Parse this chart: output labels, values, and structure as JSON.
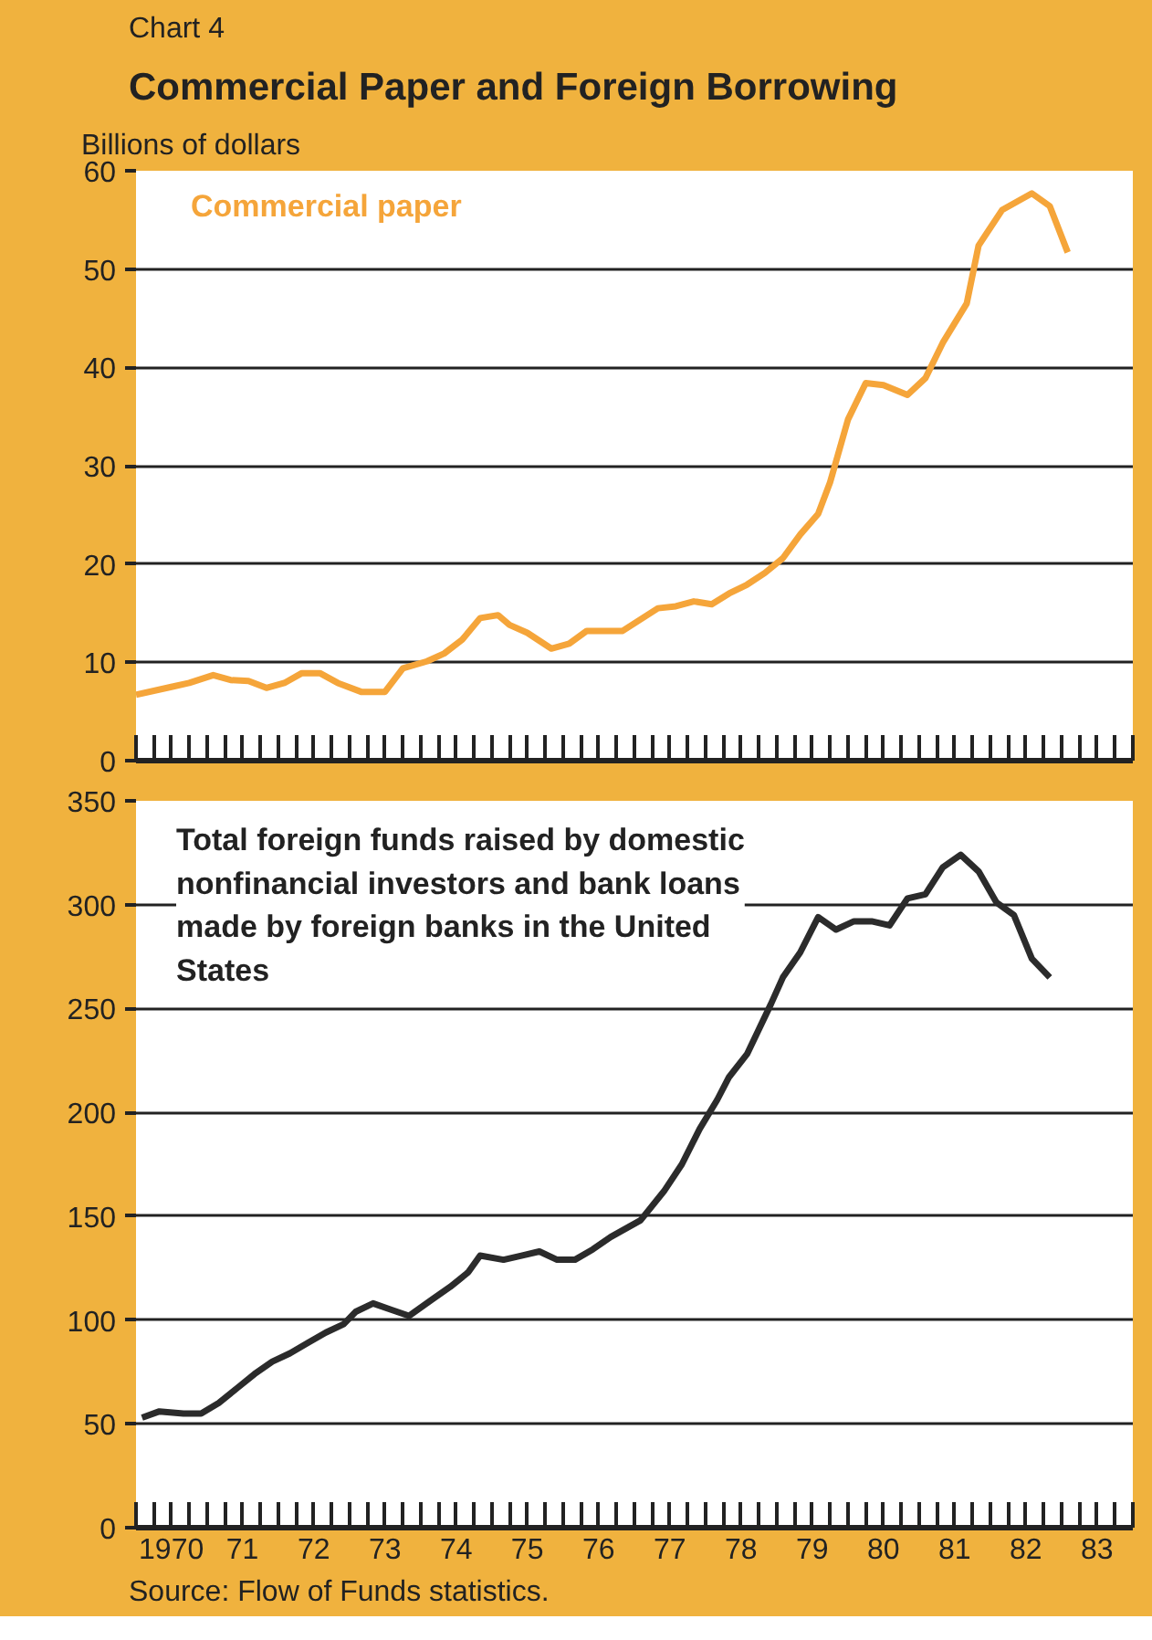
{
  "chart_data": [
    {
      "type": "line",
      "title": "Commercial Paper and Foreign Borrowing",
      "annotations": [
        "Chart 4"
      ],
      "ylabel": "Billions of dollars",
      "xlim": [
        "1970-01",
        "1984-01"
      ],
      "ylim": [
        0,
        60
      ],
      "yticks": [
        0,
        10,
        20,
        30,
        40,
        50,
        60
      ],
      "grid": "y",
      "tick_labels": "y",
      "xticks": [
        {
          "value": "1970-01",
          "label": null
        },
        {
          "value": "1970-04",
          "label": null
        },
        {
          "value": "1970-07",
          "label": "1970"
        },
        {
          "value": "1970-10",
          "label": null
        },
        {
          "value": "1971-01",
          "label": null
        },
        {
          "value": "1971-04",
          "label": null
        },
        {
          "value": "1971-07",
          "label": "71"
        },
        {
          "value": "1971-10",
          "label": null
        },
        {
          "value": "1972-01",
          "label": null
        },
        {
          "value": "1972-04",
          "label": null
        },
        {
          "value": "1972-07",
          "label": "72"
        },
        {
          "value": "1972-10",
          "label": null
        },
        {
          "value": "1973-01",
          "label": null
        },
        {
          "value": "1973-04",
          "label": null
        },
        {
          "value": "1973-07",
          "label": "73"
        },
        {
          "value": "1973-10",
          "label": null
        },
        {
          "value": "1974-01",
          "label": null
        },
        {
          "value": "1974-04",
          "label": null
        },
        {
          "value": "1974-07",
          "label": "74"
        },
        {
          "value": "1974-10",
          "label": null
        },
        {
          "value": "1975-01",
          "label": null
        },
        {
          "value": "1975-04",
          "label": null
        },
        {
          "value": "1975-07",
          "label": "75"
        },
        {
          "value": "1975-10",
          "label": null
        },
        {
          "value": "1976-01",
          "label": null
        },
        {
          "value": "1976-04",
          "label": null
        },
        {
          "value": "1976-07",
          "label": "76"
        },
        {
          "value": "1976-10",
          "label": null
        },
        {
          "value": "1977-01",
          "label": null
        },
        {
          "value": "1977-04",
          "label": null
        },
        {
          "value": "1977-07",
          "label": "77"
        },
        {
          "value": "1977-10",
          "label": null
        },
        {
          "value": "1978-01",
          "label": null
        },
        {
          "value": "1978-04",
          "label": null
        },
        {
          "value": "1978-07",
          "label": "78"
        },
        {
          "value": "1978-10",
          "label": null
        },
        {
          "value": "1979-01",
          "label": null
        },
        {
          "value": "1979-04",
          "label": null
        },
        {
          "value": "1979-07",
          "label": "79"
        },
        {
          "value": "1979-10",
          "label": null
        },
        {
          "value": "1980-01",
          "label": null
        },
        {
          "value": "1980-04",
          "label": null
        },
        {
          "value": "1980-07",
          "label": "80"
        },
        {
          "value": "1980-10",
          "label": null
        },
        {
          "value": "1981-01",
          "label": null
        },
        {
          "value": "1981-04",
          "label": null
        },
        {
          "value": "1981-07",
          "label": "81"
        },
        {
          "value": "1981-10",
          "label": null
        },
        {
          "value": "1982-01",
          "label": null
        },
        {
          "value": "1982-04",
          "label": null
        },
        {
          "value": "1982-07",
          "label": "82"
        },
        {
          "value": "1982-10",
          "label": null
        },
        {
          "value": "1983-01",
          "label": null
        },
        {
          "value": "1983-04",
          "label": null
        },
        {
          "value": "1983-07",
          "label": "83"
        },
        {
          "value": "1983-10",
          "label": null
        },
        {
          "value": "1984-01",
          "label": null
        }
      ],
      "series": [
        {
          "name": "Commercial paper",
          "color": "#f5a53a",
          "x": [
            "1970-01",
            "1970-07",
            "1970-10",
            "1971-02",
            "1971-05",
            "1971-08",
            "1971-11",
            "1972-02",
            "1972-05",
            "1972-08",
            "1972-11",
            "1973-03",
            "1973-07",
            "1973-10",
            "1974-02",
            "1974-05",
            "1974-08",
            "1974-11",
            "1975-02",
            "1975-04",
            "1975-07",
            "1975-11",
            "1976-02",
            "1976-05",
            "1976-11",
            "1977-05",
            "1977-08",
            "1977-11",
            "1978-02",
            "1978-05",
            "1978-08",
            "1978-11",
            "1979-02",
            "1979-05",
            "1979-08",
            "1979-10",
            "1980-01",
            "1980-04",
            "1980-07",
            "1980-11",
            "1981-02",
            "1981-05",
            "1981-09",
            "1981-11",
            "1982-03",
            "1982-08",
            "1982-11",
            "1983-02"
          ],
          "values": [
            6.7,
            7.5,
            7.9,
            8.7,
            8.2,
            8.1,
            7.4,
            7.9,
            8.9,
            8.9,
            7.9,
            7.0,
            7.0,
            9.4,
            10.1,
            10.9,
            12.3,
            14.5,
            14.8,
            13.8,
            13.0,
            11.4,
            11.9,
            13.2,
            13.2,
            15.5,
            15.7,
            16.2,
            15.9,
            17.0,
            17.9,
            19.1,
            20.6,
            23.0,
            25.1,
            28.3,
            34.7,
            38.4,
            38.2,
            37.2,
            38.9,
            42.5,
            46.5,
            52.4,
            56.0,
            57.7,
            56.4,
            51.7
          ]
        }
      ]
    },
    {
      "type": "line",
      "xlim": [
        "1970-01",
        "1984-01"
      ],
      "ylim": [
        0,
        350
      ],
      "yticks": [
        0,
        50,
        100,
        150,
        200,
        250,
        300,
        350
      ],
      "grid": "y",
      "annotations": [
        "Source: Flow of Funds statistics."
      ],
      "xticks": [
        {
          "value": "1970-01",
          "label": null
        },
        {
          "value": "1970-04",
          "label": null
        },
        {
          "value": "1970-07",
          "label": "1970"
        },
        {
          "value": "1970-10",
          "label": null
        },
        {
          "value": "1971-01",
          "label": null
        },
        {
          "value": "1971-04",
          "label": null
        },
        {
          "value": "1971-07",
          "label": "71"
        },
        {
          "value": "1971-10",
          "label": null
        },
        {
          "value": "1972-01",
          "label": null
        },
        {
          "value": "1972-04",
          "label": null
        },
        {
          "value": "1972-07",
          "label": "72"
        },
        {
          "value": "1972-10",
          "label": null
        },
        {
          "value": "1973-01",
          "label": null
        },
        {
          "value": "1973-04",
          "label": null
        },
        {
          "value": "1973-07",
          "label": "73"
        },
        {
          "value": "1973-10",
          "label": null
        },
        {
          "value": "1974-01",
          "label": null
        },
        {
          "value": "1974-04",
          "label": null
        },
        {
          "value": "1974-07",
          "label": "74"
        },
        {
          "value": "1974-10",
          "label": null
        },
        {
          "value": "1975-01",
          "label": null
        },
        {
          "value": "1975-04",
          "label": null
        },
        {
          "value": "1975-07",
          "label": "75"
        },
        {
          "value": "1975-10",
          "label": null
        },
        {
          "value": "1976-01",
          "label": null
        },
        {
          "value": "1976-04",
          "label": null
        },
        {
          "value": "1976-07",
          "label": "76"
        },
        {
          "value": "1976-10",
          "label": null
        },
        {
          "value": "1977-01",
          "label": null
        },
        {
          "value": "1977-04",
          "label": null
        },
        {
          "value": "1977-07",
          "label": "77"
        },
        {
          "value": "1977-10",
          "label": null
        },
        {
          "value": "1978-01",
          "label": null
        },
        {
          "value": "1978-04",
          "label": null
        },
        {
          "value": "1978-07",
          "label": "78"
        },
        {
          "value": "1978-10",
          "label": null
        },
        {
          "value": "1979-01",
          "label": null
        },
        {
          "value": "1979-04",
          "label": null
        },
        {
          "value": "1979-07",
          "label": "79"
        },
        {
          "value": "1979-10",
          "label": null
        },
        {
          "value": "1980-01",
          "label": null
        },
        {
          "value": "1980-04",
          "label": null
        },
        {
          "value": "1980-07",
          "label": "80"
        },
        {
          "value": "1980-10",
          "label": null
        },
        {
          "value": "1981-01",
          "label": null
        },
        {
          "value": "1981-04",
          "label": null
        },
        {
          "value": "1981-07",
          "label": "81"
        },
        {
          "value": "1981-10",
          "label": null
        },
        {
          "value": "1982-01",
          "label": null
        },
        {
          "value": "1982-04",
          "label": null
        },
        {
          "value": "1982-07",
          "label": "82"
        },
        {
          "value": "1982-10",
          "label": null
        },
        {
          "value": "1983-01",
          "label": null
        },
        {
          "value": "1983-04",
          "label": null
        },
        {
          "value": "1983-07",
          "label": "83"
        },
        {
          "value": "1983-10",
          "label": null
        },
        {
          "value": "1984-01",
          "label": null
        }
      ],
      "series": [
        {
          "name": "Total foreign funds raised by domestic nonfinancial investors and bank loans made by foreign banks in the United States",
          "color": "#2b2b2b",
          "x": [
            "1970-02",
            "1970-05",
            "1970-09",
            "1970-12",
            "1971-03",
            "1971-06",
            "1971-09",
            "1971-12",
            "1972-03",
            "1972-06",
            "1972-09",
            "1972-12",
            "1973-02",
            "1973-05",
            "1973-08",
            "1973-11",
            "1974-03",
            "1974-06",
            "1974-09",
            "1974-11",
            "1975-03",
            "1975-06",
            "1975-09",
            "1975-12",
            "1976-03",
            "1976-06",
            "1976-09",
            "1977-02",
            "1977-06",
            "1977-09",
            "1977-12",
            "1978-03",
            "1978-05",
            "1978-08",
            "1978-12",
            "1979-02",
            "1979-05",
            "1979-08",
            "1979-11",
            "1980-02",
            "1980-05",
            "1980-08",
            "1980-11",
            "1981-02",
            "1981-05",
            "1981-08",
            "1981-11",
            "1982-02",
            "1982-05",
            "1982-08",
            "1982-11"
          ],
          "values": [
            53,
            56,
            55,
            55,
            60,
            67,
            74,
            80,
            84,
            89,
            94,
            98,
            104,
            108,
            105,
            102,
            110,
            116,
            123,
            131,
            129,
            131,
            133,
            129,
            129,
            134,
            140,
            148,
            162,
            175,
            192,
            206,
            217,
            228,
            252,
            265,
            277,
            294,
            288,
            292,
            292,
            290,
            303,
            305,
            318,
            324,
            316,
            301,
            295,
            274,
            265
          ]
        }
      ]
    }
  ]
}
